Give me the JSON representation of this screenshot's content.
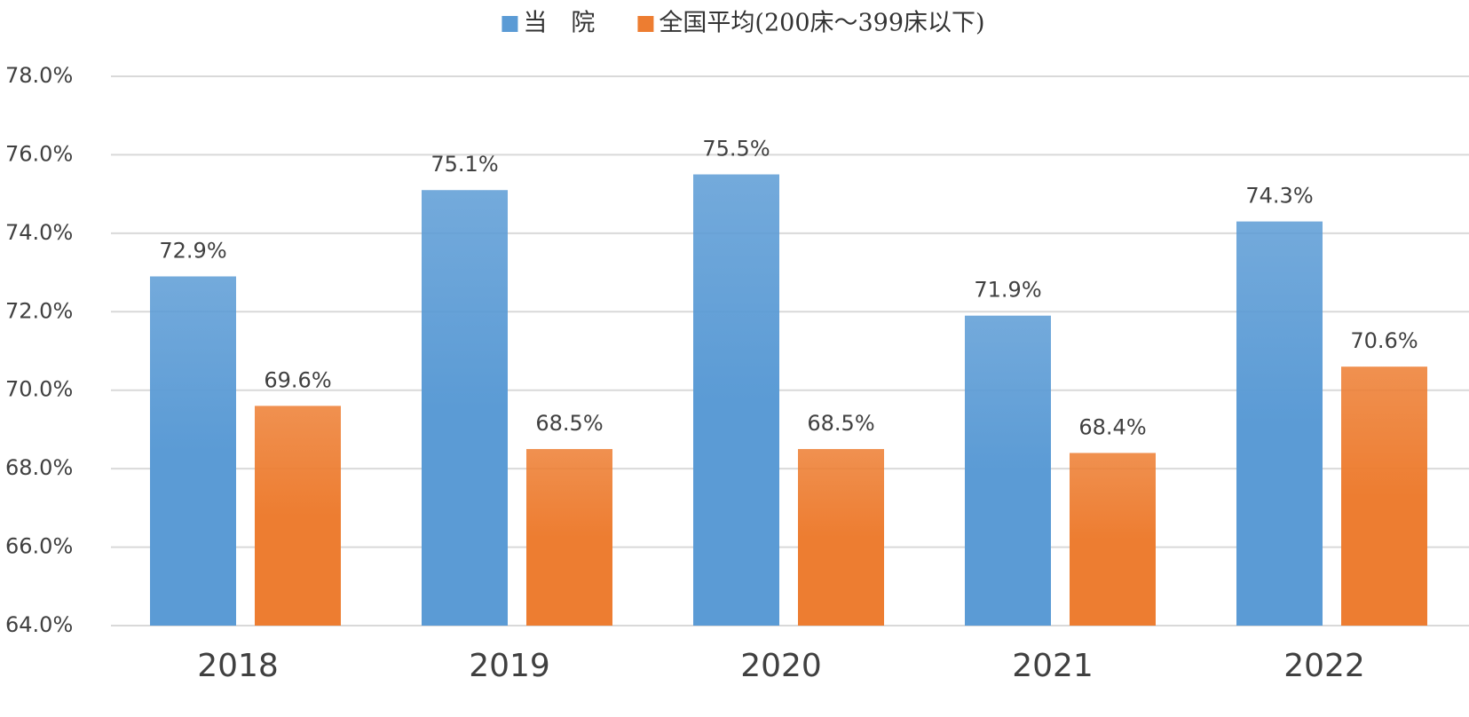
{
  "chart_data": {
    "type": "bar",
    "categories": [
      "2018",
      "2019",
      "2020",
      "2021",
      "2022"
    ],
    "series": [
      {
        "name": "当　院",
        "color": "#5b9bd5",
        "values": [
          72.9,
          75.1,
          75.5,
          71.9,
          74.3
        ],
        "value_labels": [
          "72.9%",
          "75.1%",
          "75.5%",
          "71.9%",
          "74.3%"
        ]
      },
      {
        "name": "全国平均(200床～399床以下)",
        "color": "#ed7d31",
        "values": [
          69.6,
          68.5,
          68.5,
          68.4,
          70.6
        ],
        "value_labels": [
          "69.6%",
          "68.5%",
          "68.5%",
          "68.4%",
          "70.6%"
        ]
      }
    ],
    "ylim": [
      64,
      78
    ],
    "yticks": [
      {
        "value": 64,
        "label": "64.0%"
      },
      {
        "value": 66,
        "label": "66.0%"
      },
      {
        "value": 68,
        "label": "68.0%"
      },
      {
        "value": 70,
        "label": "70.0%"
      },
      {
        "value": 72,
        "label": "72.0%"
      },
      {
        "value": 74,
        "label": "74.0%"
      },
      {
        "value": 76,
        "label": "76.0%"
      },
      {
        "value": 78,
        "label": "78.0%"
      }
    ],
    "grid": true,
    "legend": "top"
  }
}
